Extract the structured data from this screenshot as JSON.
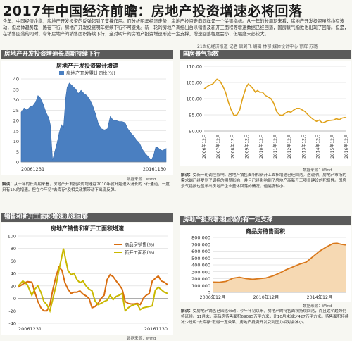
{
  "page": {
    "title": "2017年中国经济前瞻：房地产投资增速必将回落",
    "intro": "今年，中国经济企稳，房地产开发投资的反弹起到了支撑作用。而分析明年经济走势，房地产投资走向同样是一个关键指标。从十年的长周期来看，房地产开发投资虽然小有波动，但总体趋势是一路在下行。房地产开发投资明年继续下行不可避免。新一轮的房地产调控出台以销售及新开工面积等增速数据已经回落，国房景气指数也出现了回落。但是，在销售回落的同时，今年房地产的销售面积持续下行，这对明年的房地产投资增速形成一定支撑，增速回落幅度会小，但幅度未必较大。",
    "credit": "21世纪经济报道 记者 康翼飞 编辑 林郁 媒体设计中心 徐辉 苏璐"
  },
  "panels": {
    "p1": {
      "header": "房地产开发投资增速长周期持续下行",
      "source": "数据来源：Wind",
      "note_label": "解读：",
      "note": "从十年的长周期来看，房地产开发投资的增速在2010年就开始进入漫长的下行通道，一度只有1%的增速。但在今年初\"去库存\"及相关政策带动下出现反弹。"
    },
    "p2": {
      "header": "国房景气指数",
      "source": "数据来源：Wind",
      "note_label": "解读：",
      "note": "受新一轮调控影响，房地产销售面积和新开工面积增速已经回落。这说明，房地产市场的需求端已经受到了调控的明显影响，并且已经影响到了房地产商新开工项目建设的积极性。国房景气指数也显示出房地产企业整体回落的情况，但幅度较小。"
    },
    "p3": {
      "header": "销售和新开工面积增速迅速回落",
      "source": "数据来源：Wind",
      "note_label": "",
      "note": ""
    },
    "p4": {
      "header": "房地产投资增速回落仍有一定支撑",
      "source": "数据来源：Wind",
      "note_label": "解读：",
      "note": "受房地产销售已回落带动，今年年初以来，房地产的待售面积持续回落，而且这个趋势仍将延续。11月末，商品房待售面积69095万平方米，比10月末减少427万平方米。待售面积持续减少说明\"去库存\"取得一定效果，房地产投资开发受到压力相对会减小。"
    }
  },
  "chart_data": [
    {
      "type": "area",
      "title": "房地产开发投资累计增速",
      "legend": [
        "房地产开发累计同比(%)"
      ],
      "legend_position": "top-center",
      "grid": true,
      "xlabel_ticks": [
        "20061231",
        "20161130"
      ],
      "ylim": [
        0,
        40
      ],
      "yticks": [
        0,
        5,
        10,
        15,
        20,
        25,
        30,
        35,
        40
      ],
      "x_range": [
        2007,
        2016.917
      ],
      "points": [
        [
          2007.0,
          24
        ],
        [
          2007.2,
          26
        ],
        [
          2007.4,
          25
        ],
        [
          2007.6,
          26.5
        ],
        [
          2007.8,
          27
        ],
        [
          2008.0,
          29
        ],
        [
          2008.15,
          32
        ],
        [
          2008.3,
          31
        ],
        [
          2008.5,
          28
        ],
        [
          2008.7,
          24
        ],
        [
          2008.9,
          21
        ],
        [
          2009.0,
          18
        ],
        [
          2009.15,
          1
        ],
        [
          2009.3,
          5
        ],
        [
          2009.45,
          9
        ],
        [
          2009.6,
          14
        ],
        [
          2009.75,
          18
        ],
        [
          2009.9,
          16.5
        ],
        [
          2010.05,
          31
        ],
        [
          2010.15,
          36
        ],
        [
          2010.3,
          38
        ],
        [
          2010.45,
          37
        ],
        [
          2010.6,
          36
        ],
        [
          2010.75,
          35
        ],
        [
          2010.9,
          33
        ],
        [
          2011.1,
          34.5
        ],
        [
          2011.3,
          33
        ],
        [
          2011.5,
          32
        ],
        [
          2011.7,
          30
        ],
        [
          2011.9,
          27
        ],
        [
          2012.1,
          23
        ],
        [
          2012.3,
          18
        ],
        [
          2012.5,
          16
        ],
        [
          2012.7,
          15.5
        ],
        [
          2012.9,
          16
        ],
        [
          2013.1,
          22
        ],
        [
          2013.3,
          20
        ],
        [
          2013.5,
          20
        ],
        [
          2013.7,
          19.5
        ],
        [
          2013.9,
          19.5
        ],
        [
          2014.1,
          19
        ],
        [
          2014.3,
          16
        ],
        [
          2014.5,
          14
        ],
        [
          2014.7,
          12.5
        ],
        [
          2014.9,
          10.5
        ],
        [
          2015.1,
          9
        ],
        [
          2015.3,
          6
        ],
        [
          2015.5,
          4
        ],
        [
          2015.7,
          2.5
        ],
        [
          2015.9,
          1
        ],
        [
          2016.05,
          3
        ],
        [
          2016.2,
          7
        ],
        [
          2016.35,
          7
        ],
        [
          2016.5,
          6
        ],
        [
          2016.65,
          5.5
        ],
        [
          2016.8,
          6
        ],
        [
          2016.917,
          6.5
        ]
      ]
    },
    {
      "type": "line",
      "title": "国房景气指数",
      "grid": true,
      "ylim": [
        90,
        110
      ],
      "yticks": [
        90,
        95,
        100,
        105,
        110
      ],
      "yticklabels": [
        "90.00",
        "95.00",
        "100.00",
        "105.00",
        "110.00"
      ],
      "xticklabels": [
        "2006年12月",
        "2007年12月",
        "2008年12月",
        "2009年12月",
        "2010年12月",
        "2011年12月",
        "2012年12月",
        "2013年12月",
        "2014年12月",
        "2015年12月",
        "2016年12月"
      ],
      "x_range": [
        2007,
        2017
      ],
      "points": [
        [
          2007.0,
          103
        ],
        [
          2007.3,
          104
        ],
        [
          2007.6,
          104.5
        ],
        [
          2007.9,
          106
        ],
        [
          2008.1,
          105.5
        ],
        [
          2008.3,
          104
        ],
        [
          2008.5,
          102
        ],
        [
          2008.7,
          99
        ],
        [
          2008.9,
          96.5
        ],
        [
          2009.1,
          94.8
        ],
        [
          2009.3,
          95
        ],
        [
          2009.5,
          96.5
        ],
        [
          2009.7,
          100
        ],
        [
          2009.95,
          103.5
        ],
        [
          2010.1,
          104.5
        ],
        [
          2010.25,
          104
        ],
        [
          2010.45,
          103
        ],
        [
          2010.6,
          102
        ],
        [
          2010.75,
          102.5
        ],
        [
          2010.9,
          102
        ],
        [
          2011.1,
          102
        ],
        [
          2011.3,
          101
        ],
        [
          2011.5,
          100.5
        ],
        [
          2011.7,
          100
        ],
        [
          2011.9,
          98.5
        ],
        [
          2012.1,
          96
        ],
        [
          2012.3,
          95
        ],
        [
          2012.5,
          94.8
        ],
        [
          2012.7,
          95.5
        ],
        [
          2012.9,
          96
        ],
        [
          2013.1,
          95.8
        ],
        [
          2013.3,
          96.5
        ],
        [
          2013.5,
          97
        ],
        [
          2013.7,
          97
        ],
        [
          2013.9,
          96.5
        ],
        [
          2014.1,
          96
        ],
        [
          2014.3,
          95
        ],
        [
          2014.5,
          94.2
        ],
        [
          2014.7,
          93.5
        ],
        [
          2014.9,
          93
        ],
        [
          2015.1,
          93.4
        ],
        [
          2015.3,
          92.5
        ],
        [
          2015.5,
          92.8
        ],
        [
          2015.7,
          93.2
        ],
        [
          2015.9,
          93.3
        ],
        [
          2016.1,
          93.4
        ],
        [
          2016.3,
          93.8
        ],
        [
          2016.5,
          93.5
        ],
        [
          2016.7,
          94
        ],
        [
          2016.9,
          94.2
        ],
        [
          2017.0,
          94
        ]
      ]
    },
    {
      "type": "line",
      "title": "房地产销售和新开工面积增速",
      "legend_position": "inside-right",
      "grid": true,
      "ylim": [
        -40,
        100
      ],
      "yticks": [
        -40,
        -20,
        0,
        20,
        40,
        60,
        80,
        100
      ],
      "xlabel_ticks": [
        "20061231",
        "20161130"
      ],
      "x_range": [
        2007,
        2016.917
      ],
      "series": [
        {
          "name": "商品房销售(%)",
          "color": "#d96e10",
          "points": [
            [
              2007.0,
              18
            ],
            [
              2007.3,
              23
            ],
            [
              2007.6,
              27
            ],
            [
              2007.9,
              26
            ],
            [
              2008.1,
              10
            ],
            [
              2008.3,
              -5
            ],
            [
              2008.5,
              -15
            ],
            [
              2008.7,
              -20
            ],
            [
              2008.9,
              -20
            ],
            [
              2009.1,
              -10
            ],
            [
              2009.3,
              15
            ],
            [
              2009.5,
              35
            ],
            [
              2009.7,
              50
            ],
            [
              2009.9,
              45
            ],
            [
              2010.1,
              25
            ],
            [
              2010.3,
              15
            ],
            [
              2010.5,
              8
            ],
            [
              2010.7,
              10
            ],
            [
              2010.9,
              10
            ],
            [
              2011.1,
              12
            ],
            [
              2011.3,
              7
            ],
            [
              2011.5,
              4
            ],
            [
              2011.7,
              0
            ],
            [
              2011.9,
              -15
            ],
            [
              2012.1,
              -13
            ],
            [
              2012.3,
              -8
            ],
            [
              2012.5,
              0
            ],
            [
              2012.7,
              5
            ],
            [
              2012.9,
              30
            ],
            [
              2013.1,
              38
            ],
            [
              2013.3,
              35
            ],
            [
              2013.5,
              28
            ],
            [
              2013.7,
              22
            ],
            [
              2013.9,
              15
            ],
            [
              2014.1,
              -5
            ],
            [
              2014.3,
              -8
            ],
            [
              2014.5,
              -9
            ],
            [
              2014.7,
              -9
            ],
            [
              2014.9,
              -8
            ],
            [
              2015.1,
              -10
            ],
            [
              2015.3,
              0
            ],
            [
              2015.5,
              5
            ],
            [
              2015.7,
              8
            ],
            [
              2015.9,
              28
            ],
            [
              2016.1,
              32
            ],
            [
              2016.3,
              36
            ],
            [
              2016.5,
              28
            ],
            [
              2016.7,
              26
            ],
            [
              2016.917,
              22
            ]
          ]
        },
        {
          "name": "新开工面积(%)",
          "color": "#c9b800",
          "points": [
            [
              2007.0,
              20
            ],
            [
              2007.3,
              28
            ],
            [
              2007.6,
              22
            ],
            [
              2007.9,
              5
            ],
            [
              2008.1,
              15
            ],
            [
              2008.3,
              20
            ],
            [
              2008.5,
              10
            ],
            [
              2008.7,
              -5
            ],
            [
              2008.9,
              -10
            ],
            [
              2009.1,
              -20
            ],
            [
              2009.3,
              0
            ],
            [
              2009.5,
              20
            ],
            [
              2009.7,
              45
            ],
            [
              2009.9,
              68
            ],
            [
              2010.0,
              80
            ],
            [
              2010.15,
              62
            ],
            [
              2010.3,
              45
            ],
            [
              2010.5,
              38
            ],
            [
              2010.7,
              40
            ],
            [
              2010.9,
              30
            ],
            [
              2011.1,
              25
            ],
            [
              2011.3,
              28
            ],
            [
              2011.5,
              20
            ],
            [
              2011.7,
              15
            ],
            [
              2011.9,
              12
            ],
            [
              2012.1,
              -4
            ],
            [
              2012.3,
              -10
            ],
            [
              2012.5,
              -8
            ],
            [
              2012.7,
              -5
            ],
            [
              2012.9,
              -3
            ],
            [
              2013.1,
              5
            ],
            [
              2013.3,
              -2
            ],
            [
              2013.5,
              3
            ],
            [
              2013.7,
              5
            ],
            [
              2013.9,
              8
            ],
            [
              2014.1,
              -20
            ],
            [
              2014.3,
              -15
            ],
            [
              2014.5,
              -12
            ],
            [
              2014.7,
              -10
            ],
            [
              2014.9,
              -9
            ],
            [
              2015.1,
              -18
            ],
            [
              2015.3,
              -15
            ],
            [
              2015.5,
              -14
            ],
            [
              2015.7,
              -13
            ],
            [
              2015.9,
              -12
            ],
            [
              2016.1,
              13
            ],
            [
              2016.3,
              18
            ],
            [
              2016.5,
              14
            ],
            [
              2016.7,
              10
            ],
            [
              2016.917,
              8
            ]
          ]
        }
      ]
    },
    {
      "type": "area",
      "title": "商品房待售面积",
      "grid": true,
      "ylim": [
        0,
        800000
      ],
      "yticks": [
        0,
        100000,
        200000,
        300000,
        400000,
        500000,
        600000,
        700000,
        800000
      ],
      "yticklabels": [
        "0",
        "100,000",
        "200,000",
        "300,000",
        "400,000",
        "500,000",
        "600,000",
        "700,000",
        "800,000"
      ],
      "xticklabels": [
        "2006年12月",
        "2010年12月",
        "2014年12月"
      ],
      "x_range": [
        2007,
        2017
      ],
      "points": [
        [
          2007.0,
          150000
        ],
        [
          2007.5,
          148000
        ],
        [
          2008.0,
          160000
        ],
        [
          2008.5,
          205000
        ],
        [
          2009.0,
          220000
        ],
        [
          2009.5,
          200000
        ],
        [
          2010.0,
          190000
        ],
        [
          2010.5,
          200000
        ],
        [
          2011.0,
          210000
        ],
        [
          2011.5,
          240000
        ],
        [
          2012.0,
          280000
        ],
        [
          2012.5,
          330000
        ],
        [
          2013.0,
          370000
        ],
        [
          2013.5,
          410000
        ],
        [
          2014.0,
          440000
        ],
        [
          2014.5,
          520000
        ],
        [
          2015.0,
          600000
        ],
        [
          2015.5,
          660000
        ],
        [
          2016.0,
          710000
        ],
        [
          2016.3,
          715000
        ],
        [
          2016.6,
          700000
        ],
        [
          2016.9,
          691000
        ],
        [
          2017.0,
          690000
        ]
      ]
    }
  ]
}
